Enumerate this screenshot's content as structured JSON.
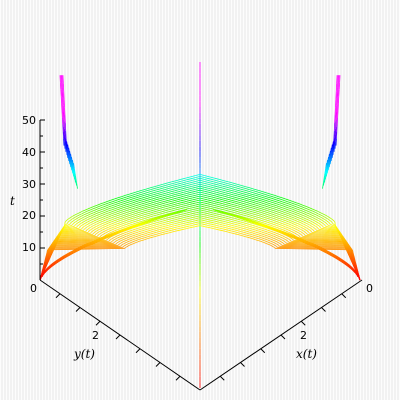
{
  "chart_data": {
    "type": "line",
    "view": "3d",
    "title": "",
    "axes": {
      "x": {
        "label": "x(t)",
        "ticks": [
          "0",
          "2"
        ],
        "range": [
          0,
          4
        ]
      },
      "y": {
        "label": "y(t)",
        "ticks": [
          "0",
          "2"
        ],
        "range": [
          0,
          4
        ]
      },
      "t": {
        "label": "t",
        "ticks": [
          "10",
          "20",
          "30",
          "40",
          "50"
        ],
        "range": [
          0,
          50
        ]
      }
    },
    "series_description": "family of parametric space curves (x(t), y(t), t), color-graded from red through yellow, green, cyan, blue to magenta",
    "colors": [
      "#ff0000",
      "#ff8000",
      "#ffff00",
      "#00ff00",
      "#00ffff",
      "#0000ff",
      "#ff00ff"
    ],
    "grid": false,
    "legend": "none"
  }
}
